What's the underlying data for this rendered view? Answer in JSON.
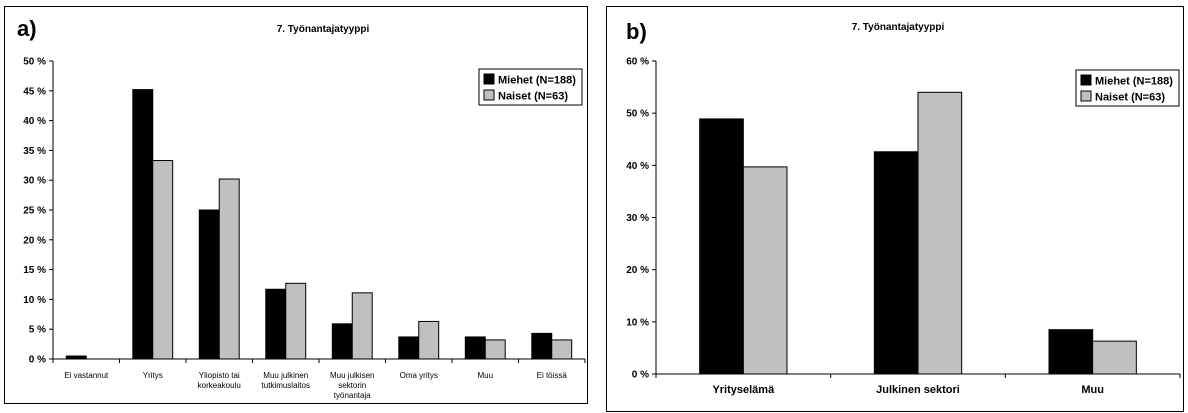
{
  "chart_data": [
    {
      "type": "bar",
      "panel_label": "a)",
      "title": "7. Työnantajatyyppi",
      "categories": [
        [
          "Ei vastannut"
        ],
        [
          "Yritys"
        ],
        [
          "Yliopisto tai",
          "korkeakoulu"
        ],
        [
          "Muu julkinen",
          "tutkimuslaitos"
        ],
        [
          "Muu julkisen",
          "sektorin",
          "työnantaja"
        ],
        [
          "Oma yritys"
        ],
        [
          "Muu"
        ],
        [
          "Ei töissä"
        ]
      ],
      "series": [
        {
          "name": "Miehet (N=188)",
          "color": "#000000",
          "values": [
            0.5,
            45.2,
            25.0,
            11.7,
            5.9,
            3.7,
            3.7,
            4.3
          ]
        },
        {
          "name": "Naiset (N=63)",
          "color": "#c0c0c0",
          "values": [
            0,
            33.3,
            30.2,
            12.7,
            11.1,
            6.3,
            3.2,
            3.2
          ]
        }
      ],
      "yticks": [
        "0 %",
        "5 %",
        "10 %",
        "15 %",
        "20 %",
        "25 %",
        "30 %",
        "35 %",
        "40 %",
        "45 %",
        "50 %"
      ],
      "ylim": [
        0,
        50
      ],
      "legend": "top-right",
      "grid": false
    },
    {
      "type": "bar",
      "panel_label": "b)",
      "title": "7. Työnantajatyyppi",
      "categories": [
        [
          "Yrityselämä"
        ],
        [
          "Julkinen sektori"
        ],
        [
          "Muu"
        ]
      ],
      "series": [
        {
          "name": "Miehet (N=188)",
          "color": "#000000",
          "values": [
            48.9,
            42.6,
            8.5
          ]
        },
        {
          "name": "Naiset (N=63)",
          "color": "#c0c0c0",
          "values": [
            39.7,
            54.0,
            6.3
          ]
        }
      ],
      "yticks": [
        "0 %",
        "10 %",
        "20 %",
        "30 %",
        "40 %",
        "50 %",
        "60 %"
      ],
      "ylim": [
        0,
        60
      ],
      "legend": "top-right",
      "grid": false
    }
  ]
}
